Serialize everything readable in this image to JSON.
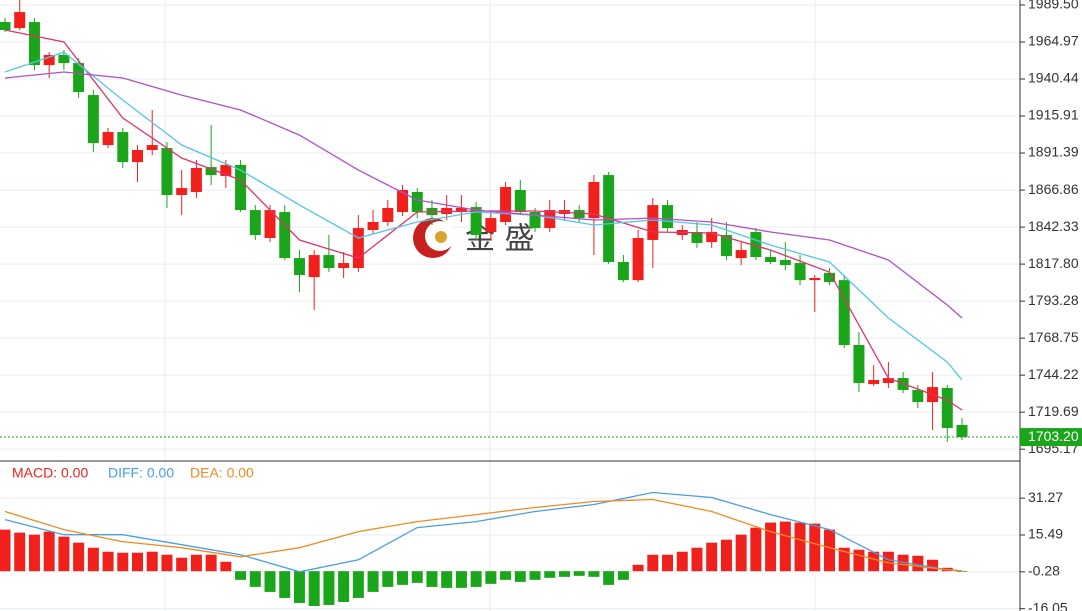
{
  "watermark": "金 盛",
  "chart_data": [
    {
      "type": "candlestick",
      "ylim": [
        1688,
        1992.8
      ],
      "yticks": [
        {
          "value": 1989.5,
          "label": "1989.50"
        },
        {
          "value": 1964.97,
          "label": "1964.97"
        },
        {
          "value": 1940.44,
          "label": "1940.44"
        },
        {
          "value": 1915.91,
          "label": "1915.91"
        },
        {
          "value": 1891.39,
          "label": "1891.39"
        },
        {
          "value": 1866.86,
          "label": "1866.86"
        },
        {
          "value": 1842.33,
          "label": "1842.33"
        },
        {
          "value": 1817.8,
          "label": "1817.80"
        },
        {
          "value": 1793.28,
          "label": "1793.28"
        },
        {
          "value": 1768.75,
          "label": "1768.75"
        },
        {
          "value": 1744.22,
          "label": "1744.22"
        },
        {
          "value": 1719.69,
          "label": "1719.69"
        },
        {
          "value": 1695.17,
          "label": "1695.17"
        }
      ],
      "grid": true,
      "up_color": "#f0201c",
      "down_color": "#1aa51a",
      "open": [
        1978.2,
        1974.2,
        1978.2,
        1949.7,
        1956.4,
        1951.0,
        1929.8,
        1896.7,
        1905.3,
        1885.4,
        1893.4,
        1894.7,
        1863.6,
        1865.6,
        1882.1,
        1876.2,
        1883.5,
        1853.6,
        1835.1,
        1852.3,
        1821.8,
        1809.2,
        1823.8,
        1815.2,
        1815.2,
        1840.4,
        1845.7,
        1852.3,
        1865.6,
        1855.0,
        1851.0,
        1852.3,
        1855.6,
        1839.1,
        1845.7,
        1866.9,
        1852.3,
        1841.7,
        1851.0,
        1853.6,
        1848.3,
        1876.8,
        1819.2,
        1807.2,
        1833.8,
        1856.9,
        1837.1,
        1839.1,
        1832.4,
        1837.1,
        1821.8,
        1839.1,
        1822.5,
        1820.5,
        1818.5,
        1807.2,
        1812.0,
        1807.2,
        1764.2,
        1738.3,
        1739.0,
        1742.3,
        1734.4,
        1726.4,
        1735.7,
        1711.2
      ],
      "high": [
        1980.9,
        1992.8,
        1980.9,
        1958.3,
        1959.7,
        1954.4,
        1933.2,
        1908.0,
        1908.0,
        1896.7,
        1919.9,
        1898.7,
        1880.1,
        1886.8,
        1910.0,
        1886.8,
        1886.8,
        1856.9,
        1856.9,
        1856.9,
        1827.1,
        1827.1,
        1837.1,
        1825.8,
        1850.3,
        1853.6,
        1860.3,
        1870.2,
        1868.2,
        1860.3,
        1863.6,
        1863.6,
        1858.9,
        1853.6,
        1872.2,
        1873.5,
        1855.0,
        1860.3,
        1860.3,
        1856.9,
        1876.8,
        1878.8,
        1823.8,
        1840.4,
        1861.6,
        1860.3,
        1843.7,
        1845.7,
        1848.3,
        1845.7,
        1832.4,
        1841.7,
        1827.1,
        1832.4,
        1823.8,
        1810.6,
        1815.2,
        1810.6,
        1772.8,
        1750.9,
        1752.9,
        1746.3,
        1737.7,
        1746.3,
        1737.7,
        1715.8
      ],
      "low": [
        1971.6,
        1972.9,
        1946.4,
        1941.1,
        1946.4,
        1927.9,
        1892.1,
        1894.7,
        1881.5,
        1872.2,
        1890.1,
        1855.0,
        1850.3,
        1861.6,
        1870.2,
        1868.2,
        1852.3,
        1833.8,
        1832.4,
        1820.5,
        1799.3,
        1787.4,
        1812.5,
        1808.6,
        1812.5,
        1837.7,
        1843.0,
        1849.7,
        1848.3,
        1843.7,
        1847.0,
        1845.7,
        1833.8,
        1833.8,
        1843.7,
        1850.3,
        1839.1,
        1839.1,
        1847.0,
        1845.7,
        1823.8,
        1817.8,
        1805.9,
        1805.9,
        1815.2,
        1839.1,
        1833.8,
        1828.5,
        1828.5,
        1820.5,
        1817.2,
        1820.5,
        1817.8,
        1813.9,
        1803.9,
        1786.0,
        1803.9,
        1762.2,
        1733.0,
        1737.0,
        1735.7,
        1732.4,
        1722.4,
        1707.8,
        1699.9,
        1701.2
      ],
      "close": [
        1972.9,
        1984.8,
        1949.7,
        1956.4,
        1951.0,
        1931.8,
        1898.0,
        1905.3,
        1885.4,
        1893.4,
        1896.7,
        1863.6,
        1868.2,
        1881.5,
        1876.8,
        1883.5,
        1853.6,
        1837.1,
        1853.6,
        1821.8,
        1810.6,
        1823.8,
        1815.2,
        1818.5,
        1841.7,
        1845.7,
        1855.0,
        1866.9,
        1852.3,
        1850.3,
        1855.0,
        1855.0,
        1837.1,
        1848.3,
        1868.9,
        1852.3,
        1841.7,
        1853.6,
        1853.6,
        1848.3,
        1872.2,
        1819.2,
        1807.2,
        1835.1,
        1856.9,
        1841.7,
        1840.4,
        1831.8,
        1839.1,
        1823.1,
        1827.1,
        1822.5,
        1819.2,
        1817.2,
        1807.2,
        1808.6,
        1805.9,
        1764.2,
        1739.0,
        1741.0,
        1742.3,
        1734.4,
        1726.4,
        1736.3,
        1709.2,
        1703.2
      ],
      "series": [
        {
          "color": "#e0336e",
          "x": [
            0,
            4,
            8,
            12,
            16,
            20,
            24,
            28,
            32,
            36,
            40,
            44,
            48,
            52,
            56,
            60,
            64,
            65
          ],
          "values": [
            1972.9,
            1965.0,
            1914.6,
            1888.1,
            1873.5,
            1833.8,
            1821.8,
            1852.3,
            1853.0,
            1853.0,
            1851.0,
            1839.1,
            1838.4,
            1827.1,
            1812.5,
            1742.3,
            1727.7,
            1721.1
          ]
        },
        {
          "color": "#55c6e6",
          "x": [
            0,
            4,
            8,
            12,
            16,
            20,
            24,
            28,
            32,
            36,
            40,
            44,
            48,
            52,
            56,
            60,
            64,
            65
          ],
          "values": [
            1945.1,
            1958.3,
            1926.5,
            1896.7,
            1880.1,
            1856.9,
            1835.1,
            1845.7,
            1852.3,
            1850.3,
            1843.7,
            1847.0,
            1843.7,
            1830.4,
            1819.2,
            1782.1,
            1752.9,
            1741.0
          ]
        },
        {
          "color": "#b24fc9",
          "x": [
            0,
            4,
            8,
            12,
            16,
            20,
            24,
            28,
            32,
            36,
            40,
            44,
            48,
            52,
            56,
            60,
            64,
            65
          ],
          "values": [
            1941.1,
            1945.1,
            1941.1,
            1929.8,
            1919.9,
            1903.3,
            1880.1,
            1860.3,
            1853.6,
            1850.3,
            1847.0,
            1848.3,
            1845.7,
            1839.1,
            1833.8,
            1820.5,
            1790.7,
            1782.1
          ]
        }
      ],
      "last_price": {
        "value": 1703.2,
        "label": "1703.20",
        "color": "#1aa51a"
      }
    },
    {
      "type": "macd",
      "ylim": [
        -17.05,
        46.3
      ],
      "yticks": [
        31.27,
        15.49,
        -0.28,
        -16.05
      ],
      "histogram": {
        "name": "MACD: 0.00",
        "up_color": "#f0201c",
        "down_color": "#1aa51a",
        "values": [
          17.78,
          16.49,
          15.63,
          16.92,
          14.77,
          12.19,
          10.04,
          8.32,
          7.89,
          7.89,
          8.32,
          7.03,
          5.74,
          7.03,
          7.03,
          4.02,
          -3.72,
          -6.73,
          -8.88,
          -11.46,
          -13.61,
          -14.9,
          -14.47,
          -13.18,
          -11.46,
          -8.88,
          -6.73,
          -5.87,
          -5.01,
          -6.73,
          -7.16,
          -7.16,
          -6.73,
          -5.44,
          -3.72,
          -4.58,
          -3.72,
          -2.86,
          -2.43,
          -2.0,
          -2.43,
          -5.87,
          -3.72,
          2.73,
          7.03,
          7.03,
          8.32,
          10.04,
          12.19,
          13.48,
          15.63,
          18.64,
          20.79,
          21.22,
          20.79,
          20.36,
          17.78,
          10.04,
          9.18,
          8.32,
          8.32,
          7.03,
          6.6,
          4.88,
          1.44,
          -0.28
        ]
      },
      "series": [
        {
          "name": "DIFF: 0.00",
          "color": "#4a9fe0",
          "x": [
            0,
            4,
            8,
            12,
            16,
            20,
            24,
            28,
            32,
            36,
            40,
            44,
            48,
            52,
            56,
            60,
            64,
            65
          ],
          "values": [
            22.08,
            15.63,
            15.63,
            11.33,
            7.03,
            -0.28,
            4.88,
            18.64,
            21.22,
            25.52,
            28.53,
            33.69,
            31.54,
            24.23,
            17.78,
            4.88,
            0.58,
            0.15
          ]
        },
        {
          "name": "DEA: 0.00",
          "color": "#f08a24",
          "x": [
            0,
            4,
            8,
            12,
            16,
            20,
            24,
            28,
            32,
            36,
            40,
            44,
            48,
            52,
            56,
            60,
            64,
            65
          ],
          "values": [
            25.52,
            17.78,
            12.62,
            10.04,
            6.17,
            10.04,
            16.92,
            21.22,
            24.23,
            27.24,
            29.82,
            30.68,
            25.52,
            16.92,
            10.04,
            3.59,
            0.58,
            0.15
          ]
        }
      ]
    }
  ]
}
